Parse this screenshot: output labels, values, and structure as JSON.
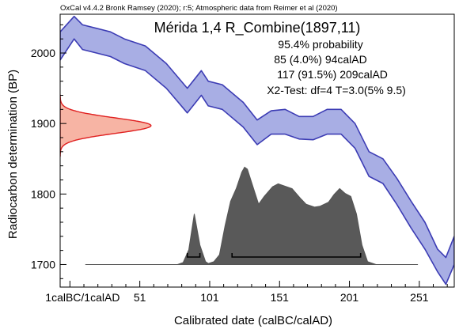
{
  "chart_data": {
    "type": "area",
    "credit": "OxCal v4.4.2 Bronk Ramsey (2020); r:5; Atmospheric data from Reimer et al (2020)",
    "title": "Mérida 1,4 R_Combine(1897,11)",
    "annotations": [
      "95.4% probability",
      "85 (4.0%) 94calAD",
      "117 (91.5%) 209calAD",
      "X2-Test: df=4 T=3.0(5% 9.5)"
    ],
    "xlabel": "Calibrated date (calBC/calAD)",
    "ylabel": "Radiocarbon determination (BP)",
    "xlim": [
      -6,
      276
    ],
    "ylim": [
      1668,
      2055
    ],
    "x_ticks": [
      {
        "value": 1,
        "label": "1calBC/1calAD"
      },
      {
        "value": 51,
        "label": "51"
      },
      {
        "value": 101,
        "label": "101"
      },
      {
        "value": 151,
        "label": "151"
      },
      {
        "value": 201,
        "label": "201"
      },
      {
        "value": 251,
        "label": "251"
      }
    ],
    "x_minor_step": 10,
    "y_ticks": [
      {
        "value": 1700,
        "label": "1700"
      },
      {
        "value": 1800,
        "label": "1800"
      },
      {
        "value": 1900,
        "label": "1900"
      },
      {
        "value": 2000,
        "label": "2000"
      }
    ],
    "y_minor_step": 20,
    "calibration_curve": {
      "color": "#3c3cb4",
      "fill": "#a8aee4",
      "x": [
        -6,
        4,
        10,
        20,
        30,
        40,
        55,
        70,
        85,
        95,
        100,
        110,
        125,
        135,
        145,
        155,
        165,
        175,
        185,
        195,
        205,
        215,
        225,
        235,
        245,
        255,
        264,
        270,
        276
      ],
      "upper": [
        2030,
        2052,
        2040,
        2035,
        2030,
        2020,
        2010,
        1985,
        1950,
        1975,
        1960,
        1955,
        1930,
        1905,
        1918,
        1920,
        1910,
        1910,
        1920,
        1920,
        1900,
        1860,
        1850,
        1822,
        1790,
        1760,
        1722,
        1710,
        1740
      ],
      "lower": [
        1990,
        2020,
        2005,
        2000,
        1995,
        1985,
        1975,
        1950,
        1915,
        1940,
        1925,
        1920,
        1895,
        1870,
        1885,
        1885,
        1878,
        1877,
        1885,
        1885,
        1865,
        1825,
        1815,
        1785,
        1752,
        1722,
        1690,
        1672,
        1700
      ]
    },
    "measurement_distribution": {
      "color": "#e02020",
      "fill": "#f7b4a4",
      "mean_bp": 1897,
      "sigma_bp": 11,
      "x_extent": 59
    },
    "posterior_distribution": {
      "fill": "#595959",
      "baseline_y": 1700,
      "x": [
        12,
        78,
        82,
        86,
        90,
        94,
        98,
        100,
        104,
        108,
        112,
        116,
        120,
        124,
        126,
        128,
        132,
        136,
        140,
        146,
        150,
        156,
        160,
        166,
        170,
        176,
        180,
        186,
        190,
        194,
        198,
        202,
        206,
        210,
        214,
        220,
        250
      ],
      "density": [
        0,
        0.0,
        0.02,
        0.15,
        0.52,
        0.2,
        0.03,
        0.01,
        0.03,
        0.1,
        0.4,
        0.65,
        0.78,
        0.95,
        1.0,
        0.98,
        0.8,
        0.62,
        0.7,
        0.8,
        0.83,
        0.8,
        0.78,
        0.68,
        0.62,
        0.59,
        0.6,
        0.64,
        0.72,
        0.78,
        0.73,
        0.7,
        0.52,
        0.2,
        0.03,
        0.0,
        0.0
      ],
      "peak_height_bp": 138
    },
    "hpd_ranges_95_4": [
      [
        85,
        94
      ],
      [
        117,
        209
      ]
    ],
    "grid": false,
    "legend": "none"
  }
}
